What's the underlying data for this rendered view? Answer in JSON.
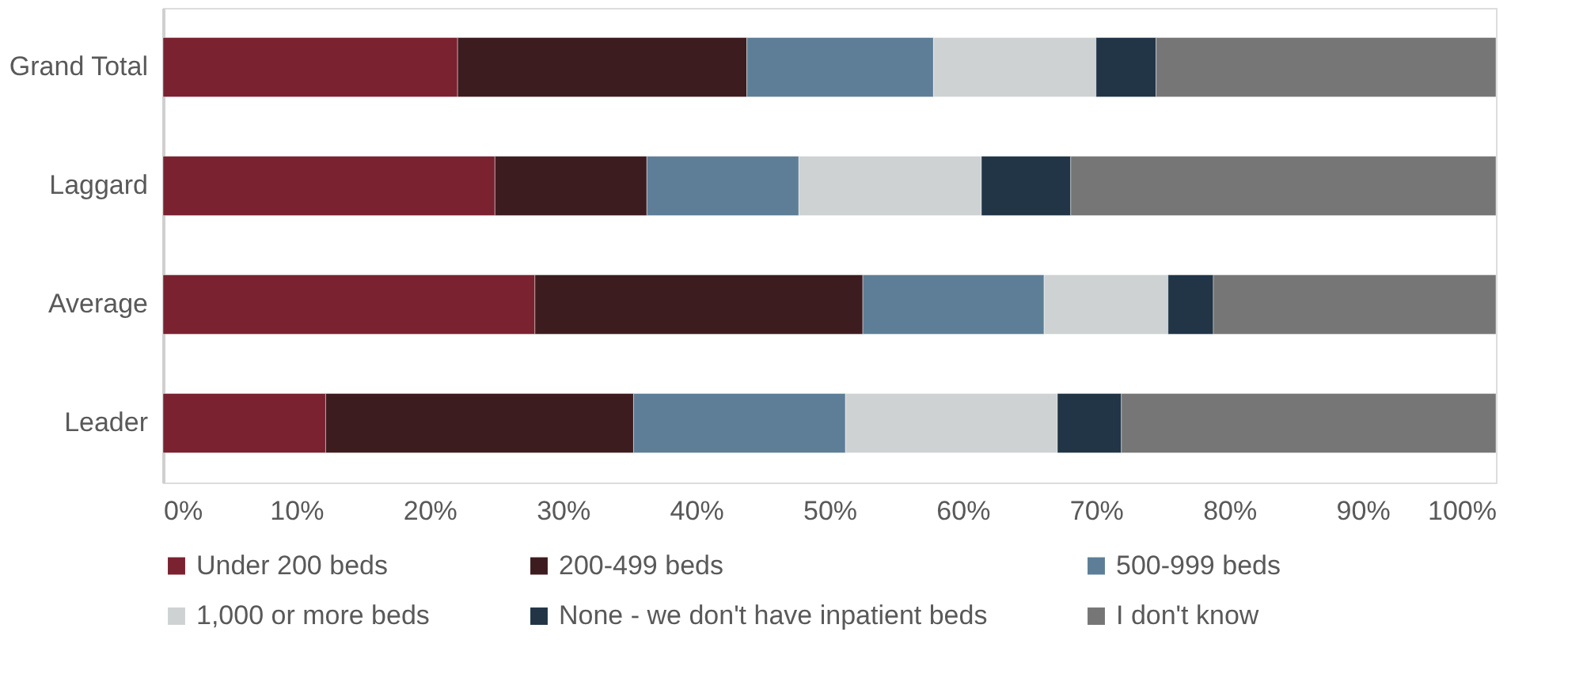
{
  "chart_data": {
    "type": "bar",
    "orientation": "horizontal",
    "stacked": true,
    "categories": [
      "Grand Total",
      "Laggard",
      "Average",
      "Leader"
    ],
    "series": [
      {
        "name": "Under 200 beds",
        "color": "#7a2230",
        "values": [
          22.1,
          24.9,
          27.9,
          12.2
        ]
      },
      {
        "name": "200-499 beds",
        "color": "#3d1c1f",
        "values": [
          21.7,
          11.4,
          24.6,
          23.1
        ]
      },
      {
        "name": "500-999 beds",
        "color": "#5e7e97",
        "values": [
          14.0,
          11.4,
          13.6,
          15.9
        ]
      },
      {
        "name": "1,000 or more beds",
        "color": "#cfd2d3",
        "values": [
          12.2,
          13.7,
          9.3,
          15.9
        ]
      },
      {
        "name": "None - we don't have inpatient beds",
        "color": "#213547",
        "values": [
          4.5,
          6.7,
          3.4,
          4.8
        ]
      },
      {
        "name": "I don't know",
        "color": "#767676",
        "values": [
          25.5,
          31.9,
          21.2,
          28.1
        ]
      }
    ],
    "xlim": [
      0,
      100
    ],
    "xticks": [
      {
        "value": 0,
        "label": "0%"
      },
      {
        "value": 10,
        "label": "10%"
      },
      {
        "value": 20,
        "label": "20%"
      },
      {
        "value": 30,
        "label": "30%"
      },
      {
        "value": 40,
        "label": "40%"
      },
      {
        "value": 50,
        "label": "50%"
      },
      {
        "value": 60,
        "label": "60%"
      },
      {
        "value": 70,
        "label": "70%"
      },
      {
        "value": 80,
        "label": "80%"
      },
      {
        "value": 90,
        "label": "90%"
      },
      {
        "value": 100,
        "label": "100%"
      }
    ],
    "grid": false,
    "legend": "bottom"
  }
}
